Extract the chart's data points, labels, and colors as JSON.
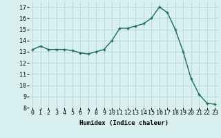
{
  "x": [
    0,
    1,
    2,
    3,
    4,
    5,
    6,
    7,
    8,
    9,
    10,
    11,
    12,
    13,
    14,
    15,
    16,
    17,
    18,
    19,
    20,
    21,
    22,
    23
  ],
  "y": [
    13.2,
    13.5,
    13.2,
    13.2,
    13.2,
    13.1,
    12.9,
    12.8,
    13.0,
    13.2,
    14.0,
    15.1,
    15.1,
    15.3,
    15.5,
    16.0,
    17.0,
    16.5,
    15.0,
    13.0,
    10.6,
    9.2,
    8.4,
    8.3
  ],
  "xlabel": "Humidex (Indice chaleur)",
  "xlim": [
    -0.5,
    23.5
  ],
  "ylim": [
    8,
    17.5
  ],
  "yticks": [
    8,
    9,
    10,
    11,
    12,
    13,
    14,
    15,
    16,
    17
  ],
  "xticks": [
    0,
    1,
    2,
    3,
    4,
    5,
    6,
    7,
    8,
    9,
    10,
    11,
    12,
    13,
    14,
    15,
    16,
    17,
    18,
    19,
    20,
    21,
    22,
    23
  ],
  "line_color": "#1a6b5a",
  "marker": "+",
  "bg_color": "#d8f0ef",
  "grid_color": "#b0cece",
  "label_fontsize": 6.5,
  "tick_fontsize": 6.0
}
